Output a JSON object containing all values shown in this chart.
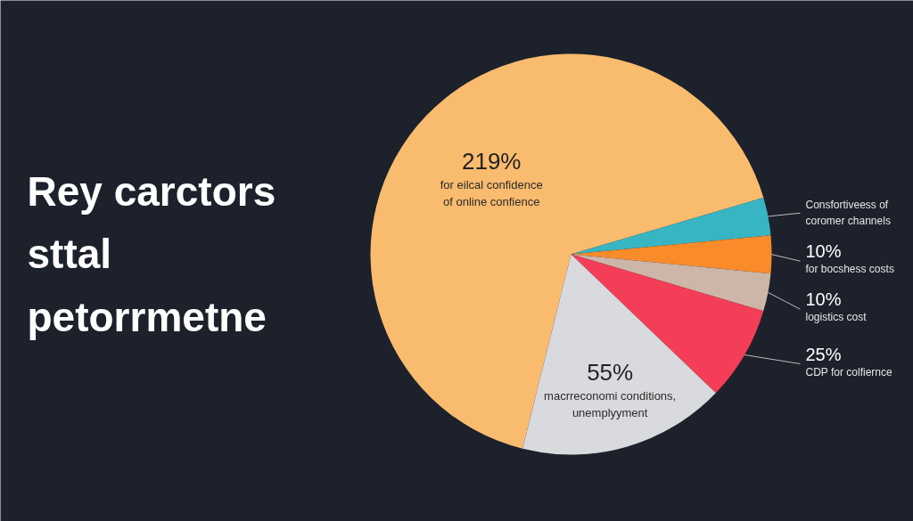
{
  "chart_data": {
    "type": "pie",
    "title": "Rey carctors\nsttal\npetorrmetne",
    "categories": [
      "for eilcal confidence\nof online confience",
      "Consfortiveess of\ncoromer channels",
      "for bocshess costs",
      "logistics cost",
      "CDP for colfiernce",
      "macrreconomi conditions,\nunemplyyment"
    ],
    "values": [
      219,
      10,
      10,
      10,
      25,
      55
    ],
    "colors": [
      "#f9bb6e",
      "#38b5c3",
      "#f98b2b",
      "#cdb5a7",
      "#f43e57",
      "#d9dadd"
    ],
    "value_labels": [
      "219%",
      null,
      "10%",
      "10%",
      "25%",
      "55%"
    ]
  }
}
